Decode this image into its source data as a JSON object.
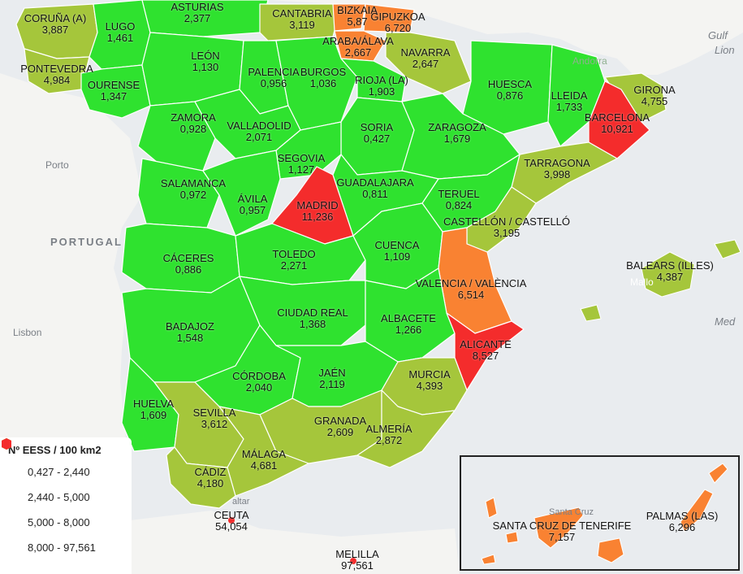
{
  "colors": {
    "c1": "#2fe22f",
    "c2": "#a5c63b",
    "c3": "#f98232",
    "c4": "#f42c2c",
    "sea": "#e9ecef",
    "land": "#f4f4f2"
  },
  "background_labels": {
    "gulf": "Gulf",
    "lion": "Lion",
    "andorra": "Andorra",
    "porto": "Porto",
    "portugal": "PORTUGAL",
    "lisbon": "Lisbon",
    "gibraltar": "altar",
    "mallorca": "Mallo",
    "med": "Med",
    "santa_cruz": "Santa Cruz"
  },
  "provinces": [
    {
      "id": "coruna",
      "name": "CORUÑA (A)",
      "value": "3,887"
    },
    {
      "id": "lugo",
      "name": "LUGO",
      "value": "1,461"
    },
    {
      "id": "asturias",
      "name": "ASTURIAS",
      "value": "2,377"
    },
    {
      "id": "cantabria",
      "name": "CANTABRIA",
      "value": "3,119"
    },
    {
      "id": "bizkaia",
      "name": "BIZKAIA",
      "value": "5,87"
    },
    {
      "id": "gipuzkoa",
      "name": "GIPUZKOA",
      "value": "6,720"
    },
    {
      "id": "araba",
      "name": "ARABA/ÁLAVA",
      "value": "2,667"
    },
    {
      "id": "navarra",
      "name": "NAVARRA",
      "value": "2,647"
    },
    {
      "id": "pontevedra",
      "name": "PONTEVEDRA",
      "value": "4,984"
    },
    {
      "id": "ourense",
      "name": "OURENSE",
      "value": "1,347"
    },
    {
      "id": "leon",
      "name": "LEÓN",
      "value": "1,130"
    },
    {
      "id": "palencia",
      "name": "PALENCIA",
      "value": "0,956"
    },
    {
      "id": "burgos",
      "name": "BURGOS",
      "value": "1,036"
    },
    {
      "id": "rioja",
      "name": "RIOJA (LA)",
      "value": "1,903"
    },
    {
      "id": "huesca",
      "name": "HUESCA",
      "value": "0,876"
    },
    {
      "id": "lleida",
      "name": "LLEIDA",
      "value": "1,733"
    },
    {
      "id": "girona",
      "name": "GIRONA",
      "value": "4,755"
    },
    {
      "id": "barcelona",
      "name": "BARCELONA",
      "value": "10,921"
    },
    {
      "id": "zamora",
      "name": "ZAMORA",
      "value": "0,928"
    },
    {
      "id": "valladolid",
      "name": "VALLADOLID",
      "value": "2,071"
    },
    {
      "id": "soria",
      "name": "SORIA",
      "value": "0,427"
    },
    {
      "id": "zaragoza",
      "name": "ZARAGOZA",
      "value": "1,679"
    },
    {
      "id": "tarragona",
      "name": "TARRAGONA",
      "value": "3,998"
    },
    {
      "id": "segovia",
      "name": "SEGOVIA",
      "value": "1,127"
    },
    {
      "id": "salamanca",
      "name": "SALAMANCA",
      "value": "0,972"
    },
    {
      "id": "avila",
      "name": "ÁVILA",
      "value": "0,957"
    },
    {
      "id": "madrid",
      "name": "MADRID",
      "value": "11,236"
    },
    {
      "id": "guadalajara",
      "name": "GUADALAJARA",
      "value": "0,811"
    },
    {
      "id": "teruel",
      "name": "TERUEL",
      "value": "0,824"
    },
    {
      "id": "castellon",
      "name": "CASTELLÓN / CASTELLÓ",
      "value": "3,195"
    },
    {
      "id": "caceres",
      "name": "CÁCERES",
      "value": "0,886"
    },
    {
      "id": "toledo",
      "name": "TOLEDO",
      "value": "2,271"
    },
    {
      "id": "cuenca",
      "name": "CUENCA",
      "value": "1,109"
    },
    {
      "id": "valencia",
      "name": "VALENCIA / VALÈNCIA",
      "value": "6,514"
    },
    {
      "id": "baleares",
      "name": "BALEARS (ILLES)",
      "value": "4,387"
    },
    {
      "id": "badajoz",
      "name": "BADAJOZ",
      "value": "1,548"
    },
    {
      "id": "ciudadreal",
      "name": "CIUDAD REAL",
      "value": "1,368"
    },
    {
      "id": "albacete",
      "name": "ALBACETE",
      "value": "1,266"
    },
    {
      "id": "alicante",
      "name": "ALICANTE",
      "value": "8,527"
    },
    {
      "id": "cordoba",
      "name": "CÓRDOBA",
      "value": "2,040"
    },
    {
      "id": "jaen",
      "name": "JAÉN",
      "value": "2,119"
    },
    {
      "id": "murcia",
      "name": "MURCIA",
      "value": "4,393"
    },
    {
      "id": "huelva",
      "name": "HUELVA",
      "value": "1,609"
    },
    {
      "id": "sevilla",
      "name": "SEVILLA",
      "value": "3,612"
    },
    {
      "id": "granada",
      "name": "GRANADA",
      "value": "2,609"
    },
    {
      "id": "almeria",
      "name": "ALMERÍA",
      "value": "2,872"
    },
    {
      "id": "malaga",
      "name": "MÁLAGA",
      "value": "4,681"
    },
    {
      "id": "cadiz",
      "name": "CÁDIZ",
      "value": "4,180"
    },
    {
      "id": "ceuta",
      "name": "CEUTA",
      "value": "54,054"
    },
    {
      "id": "melilla",
      "name": "MELILLA",
      "value": "97,561"
    },
    {
      "id": "tenerife",
      "name": "SANTA CRUZ DE TENERIFE",
      "value": "7,157"
    },
    {
      "id": "laspalmas",
      "name": "PALMAS (LAS)",
      "value": "6,296"
    }
  ],
  "legend": {
    "title": "Nº EESS / 100 km2",
    "items": [
      {
        "label": "0,427 - 2,440",
        "color": "#2fe22f"
      },
      {
        "label": "2,440 - 5,000",
        "color": "#a5c63b"
      },
      {
        "label": "5,000 - 8,000",
        "color": "#f98232"
      },
      {
        "label": "8,000 - 97,561",
        "color": "#f42c2c"
      }
    ]
  }
}
